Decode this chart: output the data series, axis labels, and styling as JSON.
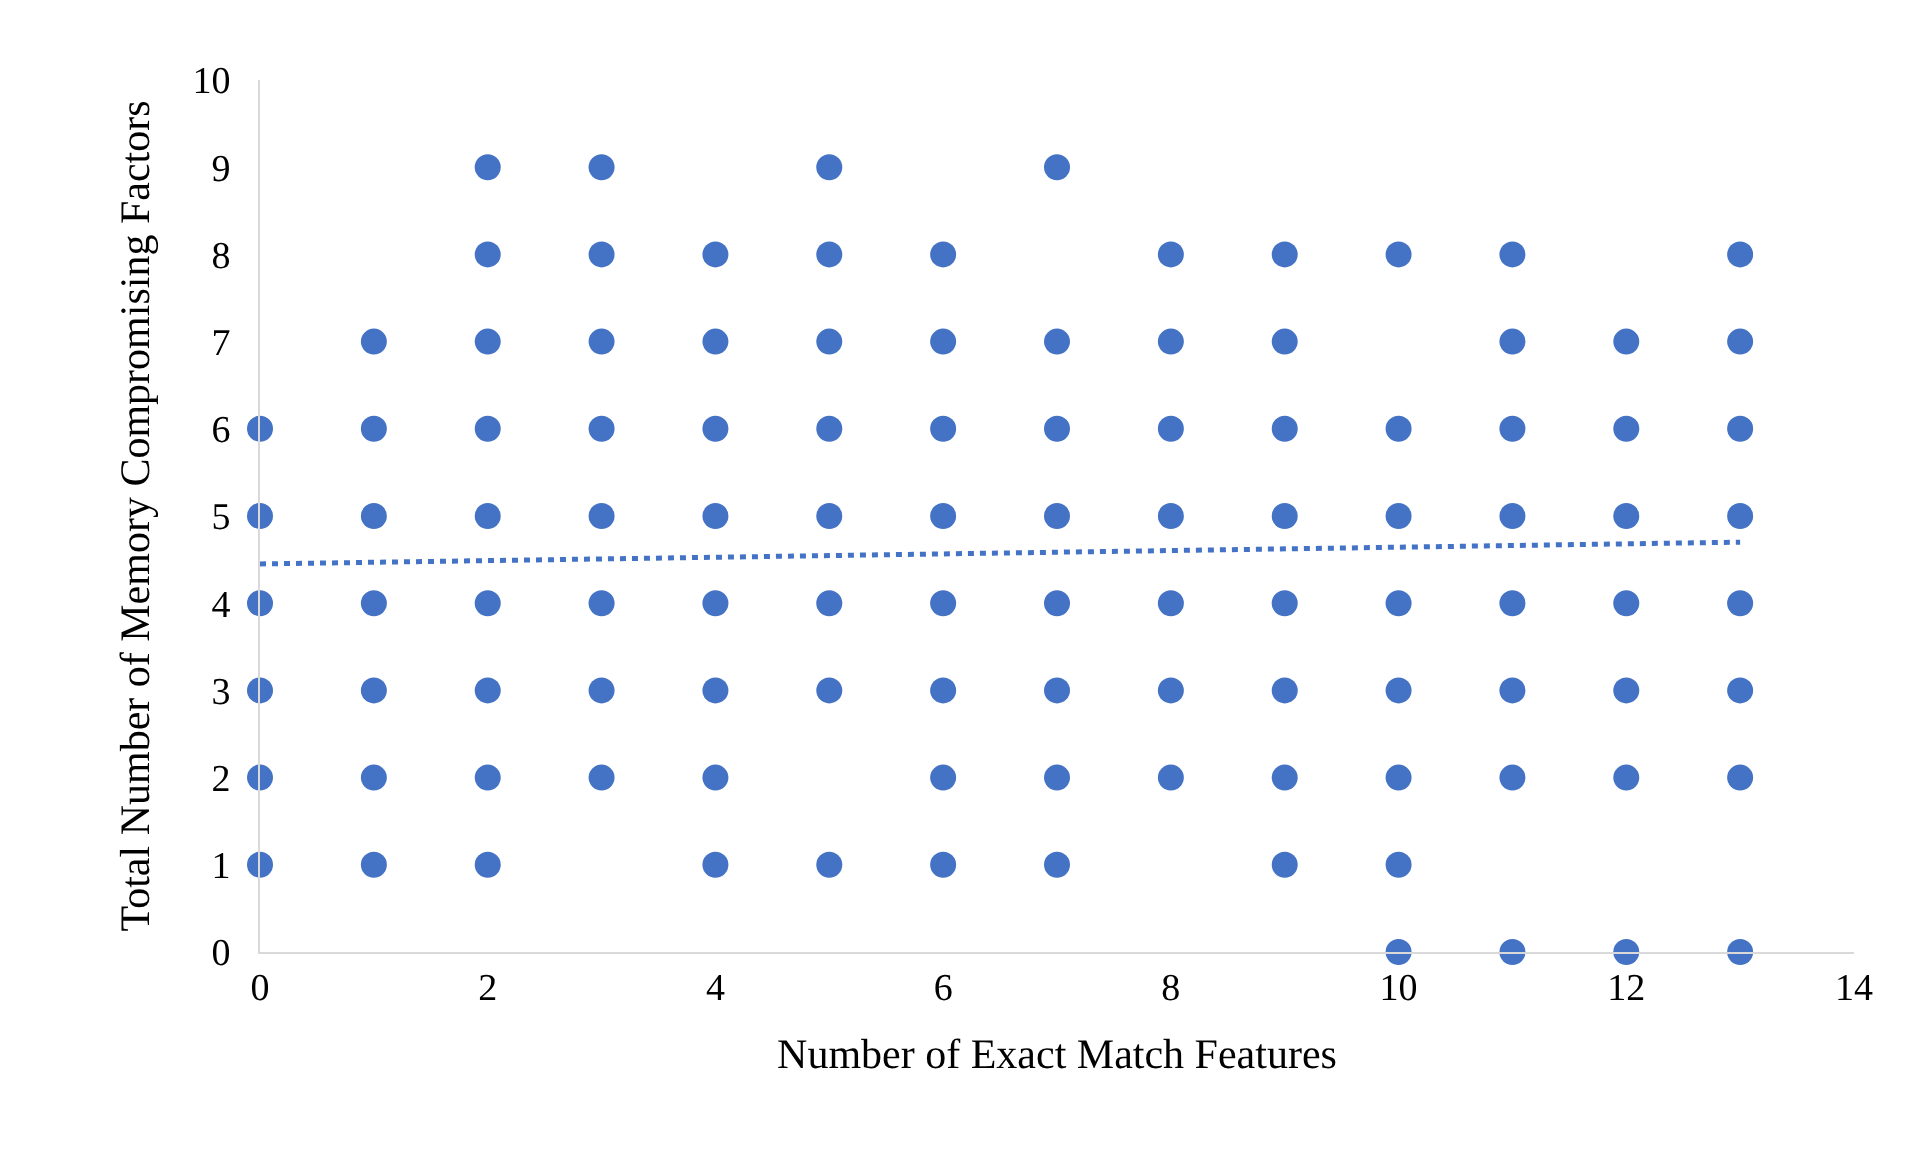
{
  "chart_data": {
    "type": "scatter",
    "xlabel": "Number of Exact Match Features",
    "ylabel": "Total Number of Memory Compromising Factors",
    "xlim": [
      0,
      14
    ],
    "xticks": [
      0,
      2,
      4,
      6,
      8,
      10,
      12,
      14
    ],
    "ylim": [
      0,
      10
    ],
    "yticks": [
      0,
      1,
      2,
      3,
      4,
      5,
      6,
      7,
      8,
      9,
      10
    ],
    "series": [
      {
        "color": "#4472c4",
        "x": [
          0,
          0,
          0,
          0,
          0,
          0,
          1,
          1,
          1,
          1,
          1,
          1,
          1,
          2,
          2,
          2,
          2,
          2,
          2,
          2,
          2,
          2,
          3,
          3,
          3,
          3,
          3,
          3,
          3,
          3,
          4,
          4,
          4,
          4,
          4,
          4,
          4,
          4,
          5,
          5,
          5,
          5,
          5,
          5,
          5,
          5,
          6,
          6,
          6,
          6,
          6,
          6,
          6,
          6,
          7,
          7,
          7,
          7,
          7,
          7,
          7,
          7,
          8,
          8,
          8,
          8,
          8,
          8,
          8,
          9,
          9,
          9,
          9,
          9,
          9,
          9,
          9,
          10,
          10,
          10,
          10,
          10,
          10,
          10,
          10,
          11,
          11,
          11,
          11,
          11,
          11,
          11,
          11,
          12,
          12,
          12,
          12,
          12,
          12,
          12,
          13,
          13,
          13,
          13,
          13,
          13,
          13,
          13
        ],
        "values": [
          1,
          2,
          3,
          4,
          5,
          6,
          1,
          2,
          3,
          4,
          5,
          6,
          7,
          1,
          2,
          3,
          4,
          5,
          6,
          7,
          8,
          9,
          2,
          3,
          4,
          5,
          6,
          7,
          8,
          9,
          1,
          2,
          3,
          4,
          5,
          6,
          7,
          8,
          1,
          3,
          4,
          5,
          6,
          7,
          8,
          9,
          1,
          2,
          3,
          4,
          5,
          6,
          7,
          8,
          1,
          2,
          3,
          4,
          5,
          6,
          7,
          9,
          2,
          3,
          4,
          5,
          6,
          7,
          8,
          1,
          2,
          3,
          4,
          5,
          6,
          7,
          8,
          0,
          1,
          2,
          3,
          4,
          5,
          6,
          8,
          0,
          2,
          3,
          4,
          5,
          6,
          7,
          8,
          0,
          2,
          3,
          4,
          5,
          6,
          7,
          0,
          2,
          3,
          4,
          5,
          6,
          7,
          8
        ]
      },
      {
        "type": "line",
        "color": "#4472c4",
        "x": [
          0,
          13
        ],
        "values": [
          4.45,
          4.7
        ],
        "line_style": "dotted",
        "marker": "none"
      }
    ]
  }
}
